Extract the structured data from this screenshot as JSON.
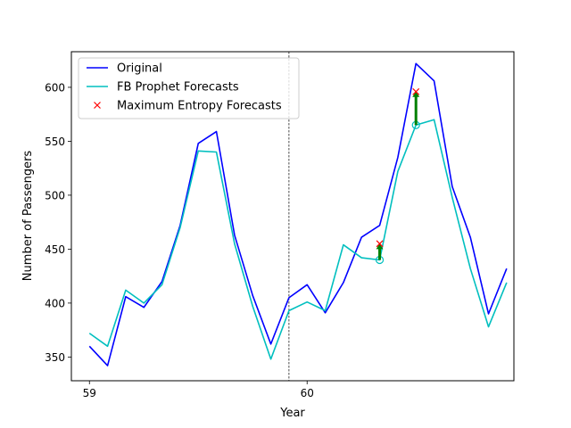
{
  "chart_data": {
    "type": "line",
    "xlabel": "Year",
    "ylabel": "Number of Passengers",
    "xlim": [
      58.917,
      60.95
    ],
    "ylim": [
      328,
      633
    ],
    "x_ticks": [
      {
        "value": 59,
        "label": "59"
      },
      {
        "value": 60,
        "label": "60"
      }
    ],
    "y_ticks": [
      {
        "value": 350,
        "label": "350"
      },
      {
        "value": 400,
        "label": "400"
      },
      {
        "value": 450,
        "label": "450"
      },
      {
        "value": 500,
        "label": "500"
      },
      {
        "value": 550,
        "label": "550"
      },
      {
        "value": 600,
        "label": "600"
      }
    ],
    "x": [
      59.0,
      59.0833,
      59.1667,
      59.25,
      59.3333,
      59.4167,
      59.5,
      59.5833,
      59.6667,
      59.75,
      59.8333,
      59.9167,
      60.0,
      60.0833,
      60.1667,
      60.25,
      60.3333,
      60.4167,
      60.5,
      60.5833,
      60.6667,
      60.75,
      60.8333,
      60.9167
    ],
    "series": [
      {
        "name": "Original",
        "color": "#0000ff",
        "values": [
          360,
          342,
          406,
          396,
          420,
          472,
          548,
          559,
          463,
          407,
          362,
          405,
          417,
          391,
          419,
          461,
          472,
          535,
          622,
          606,
          508,
          461,
          390,
          432
        ]
      },
      {
        "name": "FB Prophet Forecasts",
        "color": "#00bfbf",
        "values": [
          372,
          360,
          412,
          400,
          417,
          470,
          541,
          540,
          455,
          397,
          348,
          393,
          401,
          393,
          454,
          442,
          440,
          522,
          565,
          570,
          498,
          432,
          378,
          419
        ]
      }
    ],
    "markers": {
      "name": "Maximum Entropy Forecasts",
      "color": "#ff0000",
      "points": [
        {
          "x": 60.3333,
          "y": 455
        },
        {
          "x": 60.5,
          "y": 596
        }
      ]
    },
    "highlighted_forecasts": {
      "color": "#00bfbf",
      "points": [
        {
          "x": 60.3333,
          "y": 440
        },
        {
          "x": 60.5,
          "y": 565
        }
      ]
    },
    "arrows": {
      "color": "#008000",
      "items": [
        {
          "x": 60.3333,
          "y_from": 440,
          "y_to": 455
        },
        {
          "x": 60.5,
          "y_from": 565,
          "y_to": 596
        }
      ]
    },
    "vline": {
      "x": 59.9167,
      "style": "dashed"
    },
    "legend": {
      "placement": "top-left"
    },
    "grid": false
  }
}
